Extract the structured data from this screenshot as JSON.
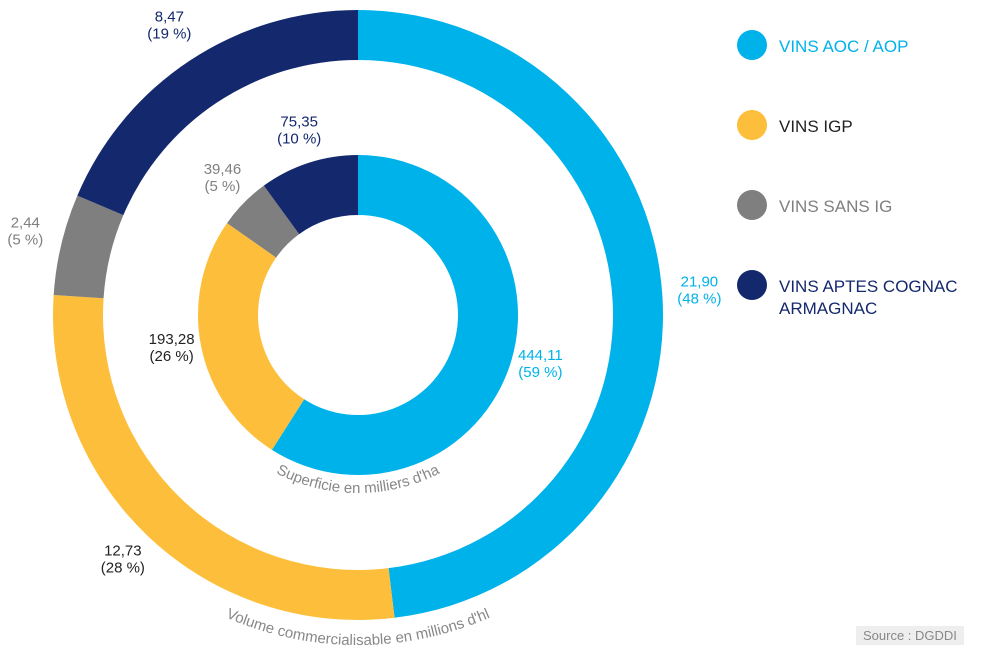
{
  "chart_data": [
    {
      "type": "pie",
      "title": "Superficie en milliers d'ha",
      "categories": [
        "VINS AOC / AOP",
        "VINS IGP",
        "VINS SANS IG",
        "VINS APTES COGNAC ARMAGNAC"
      ],
      "values": [
        444.11,
        193.28,
        39.46,
        75.35
      ],
      "value_labels": [
        "444,11",
        "193,28",
        "39,46",
        "75,35"
      ],
      "percents": [
        59,
        26,
        5,
        10
      ],
      "percent_labels": [
        "(59 %)",
        "(26 %)",
        "(5 %)",
        "(10 %)"
      ],
      "colors": [
        "#00b2ea",
        "#fdbf3b",
        "#7f7f7f",
        "#14286e"
      ]
    },
    {
      "type": "pie",
      "title": "Volume commercialisable en millions d'hl",
      "categories": [
        "VINS AOC / AOP",
        "VINS IGP",
        "VINS SANS IG",
        "VINS APTES COGNAC ARMAGNAC"
      ],
      "values": [
        21.9,
        12.73,
        2.44,
        8.47
      ],
      "value_labels": [
        "21,90",
        "12,73",
        "2,44",
        "8,47"
      ],
      "percents": [
        48,
        28,
        5,
        19
      ],
      "percent_labels": [
        "(48 %)",
        "(28 %)",
        "(5 %)",
        "(19 %)"
      ],
      "colors": [
        "#00b2ea",
        "#fdbf3b",
        "#7f7f7f",
        "#14286e"
      ]
    }
  ],
  "source": "Source : DGDDI"
}
